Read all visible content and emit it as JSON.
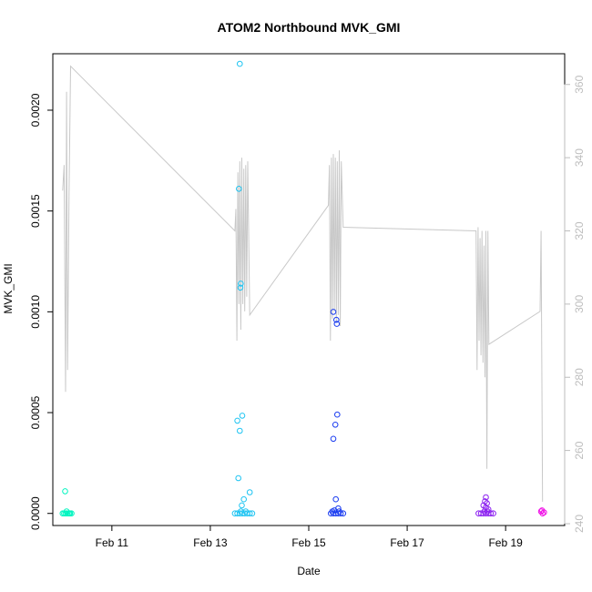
{
  "chart_data": {
    "type": "scatter",
    "title": "ATOM2 Northbound MVK_GMI",
    "xlabel": "Date",
    "ylabel": "MVK_GMI",
    "x_ticks": [
      "Feb 11",
      "Feb 13",
      "Feb 15",
      "Feb 17",
      "Feb 19"
    ],
    "x_tick_days": [
      11,
      13,
      15,
      17,
      19
    ],
    "xlim": [
      9.8,
      20.2
    ],
    "y_ticks": [
      "0.0000",
      "0.0005",
      "0.0010",
      "0.0015",
      "0.0020"
    ],
    "y_tick_values": [
      0,
      0.0005,
      0.001,
      0.0015,
      0.002
    ],
    "ylim": [
      -6e-05,
      0.00228
    ],
    "y2_ticks": [
      "240",
      "260",
      "280",
      "300",
      "320",
      "340",
      "360"
    ],
    "y2_tick_values": [
      240,
      260,
      280,
      300,
      320,
      340,
      360
    ],
    "y2lim": [
      239.5,
      368.4
    ],
    "grid": false,
    "legend": "none",
    "colors": {
      "flight1": "#00f5c0",
      "flight2": "#1ec4f2",
      "flight3": "#1a3cf0",
      "flight4": "#8b1ff0",
      "flight5": "#f010e6",
      "secondary_line": "#c8c8c8",
      "axis": "#000000",
      "right_axis": "#bdbdbd"
    },
    "series": [
      {
        "color_key": "flight1",
        "points": [
          [
            10.05,
            0.00011
          ],
          [
            10.0,
            0.0
          ],
          [
            10.03,
            0.0
          ],
          [
            10.06,
            0.0
          ],
          [
            10.09,
            0.0
          ],
          [
            10.12,
            0.0
          ],
          [
            10.15,
            0.0
          ],
          [
            10.18,
            0.0
          ],
          [
            10.08,
            1e-05
          ],
          [
            10.14,
            0.0
          ]
        ]
      },
      {
        "color_key": "flight2",
        "points": [
          [
            13.6,
            0.00223
          ],
          [
            13.58,
            0.00161
          ],
          [
            13.62,
            0.00114
          ],
          [
            13.61,
            0.00112
          ],
          [
            13.65,
            0.000485
          ],
          [
            13.55,
            0.00046
          ],
          [
            13.6,
            0.00041
          ],
          [
            13.57,
            0.000175
          ],
          [
            13.8,
            0.000105
          ],
          [
            13.68,
            7e-05
          ],
          [
            13.64,
            4e-05
          ],
          [
            13.5,
            0.0
          ],
          [
            13.55,
            0.0
          ],
          [
            13.6,
            0.0
          ],
          [
            13.65,
            0.0
          ],
          [
            13.7,
            0.0
          ],
          [
            13.75,
            0.0
          ],
          [
            13.8,
            0.0
          ],
          [
            13.85,
            0.0
          ],
          [
            13.62,
            1e-05
          ],
          [
            13.72,
            1e-05
          ]
        ]
      },
      {
        "color_key": "flight3",
        "points": [
          [
            15.5,
            0.001
          ],
          [
            15.56,
            0.00096
          ],
          [
            15.57,
            0.00094
          ],
          [
            15.58,
            0.00049
          ],
          [
            15.54,
            0.00044
          ],
          [
            15.5,
            0.00037
          ],
          [
            15.55,
            7e-05
          ],
          [
            15.6,
            2.5e-05
          ],
          [
            15.45,
            0.0
          ],
          [
            15.5,
            0.0
          ],
          [
            15.55,
            0.0
          ],
          [
            15.6,
            0.0
          ],
          [
            15.65,
            0.0
          ],
          [
            15.7,
            0.0
          ],
          [
            15.48,
            1e-05
          ],
          [
            15.62,
            1e-05
          ],
          [
            15.52,
            1.5e-05
          ]
        ]
      },
      {
        "color_key": "flight4",
        "points": [
          [
            18.6,
            8e-05
          ],
          [
            18.58,
            6e-05
          ],
          [
            18.62,
            5e-05
          ],
          [
            18.55,
            4e-05
          ],
          [
            18.6,
            3e-05
          ],
          [
            18.65,
            2e-05
          ],
          [
            18.45,
            0.0
          ],
          [
            18.5,
            0.0
          ],
          [
            18.55,
            0.0
          ],
          [
            18.6,
            0.0
          ],
          [
            18.65,
            0.0
          ],
          [
            18.7,
            0.0
          ],
          [
            18.75,
            0.0
          ],
          [
            18.57,
            1e-05
          ],
          [
            18.63,
            1e-05
          ]
        ]
      },
      {
        "color_key": "flight5",
        "points": [
          [
            19.72,
            1e-05
          ],
          [
            19.75,
            0.0
          ],
          [
            19.78,
            5e-06
          ],
          [
            19.74,
            1.5e-05
          ]
        ]
      }
    ],
    "secondary_series": {
      "axis": "right",
      "color_key": "secondary_line",
      "points": [
        [
          10.0,
          331
        ],
        [
          10.03,
          338
        ],
        [
          10.06,
          276
        ],
        [
          10.08,
          358
        ],
        [
          10.1,
          282
        ],
        [
          10.13,
          330
        ],
        [
          10.16,
          365
        ],
        [
          13.5,
          320
        ],
        [
          13.52,
          326
        ],
        [
          13.54,
          290
        ],
        [
          13.56,
          336
        ],
        [
          13.58,
          300
        ],
        [
          13.6,
          339
        ],
        [
          13.62,
          293
        ],
        [
          13.64,
          340
        ],
        [
          13.66,
          300
        ],
        [
          13.68,
          337
        ],
        [
          13.7,
          298
        ],
        [
          13.72,
          338
        ],
        [
          13.74,
          302
        ],
        [
          13.76,
          339
        ],
        [
          13.8,
          297
        ],
        [
          15.4,
          327
        ],
        [
          15.42,
          338
        ],
        [
          15.44,
          290
        ],
        [
          15.46,
          340
        ],
        [
          15.48,
          296
        ],
        [
          15.5,
          341
        ],
        [
          15.52,
          298
        ],
        [
          15.54,
          340
        ],
        [
          15.56,
          295
        ],
        [
          15.58,
          339
        ],
        [
          15.6,
          297
        ],
        [
          15.62,
          342
        ],
        [
          15.64,
          294
        ],
        [
          15.66,
          339
        ],
        [
          15.7,
          321
        ],
        [
          18.4,
          320
        ],
        [
          18.42,
          282
        ],
        [
          18.44,
          321
        ],
        [
          18.46,
          290
        ],
        [
          18.48,
          318
        ],
        [
          18.5,
          286
        ],
        [
          18.52,
          320
        ],
        [
          18.54,
          284
        ],
        [
          18.56,
          316
        ],
        [
          18.58,
          280
        ],
        [
          18.6,
          320
        ],
        [
          18.62,
          255
        ],
        [
          18.64,
          320
        ],
        [
          18.66,
          289
        ],
        [
          19.7,
          298
        ],
        [
          19.72,
          320
        ],
        [
          19.75,
          246
        ]
      ]
    }
  }
}
